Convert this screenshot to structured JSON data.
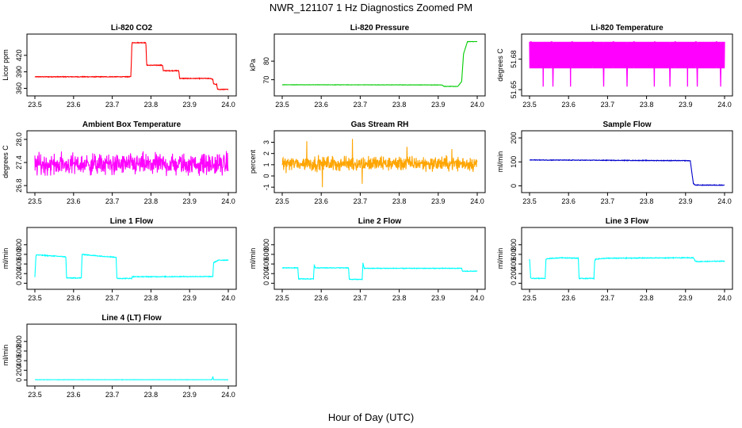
{
  "page": {
    "title": "NWR_121107  1 Hz Diagnostics Zoomed PM",
    "xlabel": "Hour of Day (UTC)"
  },
  "chart_data": [
    {
      "type": "line",
      "title": "Li-820 CO2",
      "ylabel": "Licor ppm",
      "xlim": [
        23.5,
        24.0
      ],
      "ylim": [
        352,
        450
      ],
      "xticks": [
        "23.5",
        "23.6",
        "23.7",
        "23.8",
        "23.9",
        "24.0"
      ],
      "yticks": [
        360,
        390,
        420
      ],
      "color": "#ff0000",
      "noise": 0.6,
      "series": [
        {
          "x": [
            23.5,
            23.748,
            23.751,
            23.787,
            23.789,
            23.83,
            23.832,
            23.872,
            23.874,
            23.955,
            23.96,
            23.962,
            23.97,
            23.972,
            24.0
          ],
          "y": [
            381,
            381,
            443,
            443,
            402,
            402,
            392,
            392,
            378,
            378,
            376,
            368,
            367,
            358,
            358
          ]
        }
      ]
    },
    {
      "type": "line",
      "title": "Li-820 Pressure",
      "ylabel": "kPa",
      "xlim": [
        23.5,
        24.0
      ],
      "ylim": [
        63,
        92
      ],
      "xticks": [
        "23.5",
        "23.6",
        "23.7",
        "23.8",
        "23.9",
        "24.0"
      ],
      "yticks": [
        70,
        80
      ],
      "color": "#00cc00",
      "noise": 0.08,
      "series": [
        {
          "x": [
            23.5,
            23.91,
            23.915,
            23.95,
            23.96,
            23.965,
            23.975,
            24.0
          ],
          "y": [
            67.3,
            67.2,
            66.4,
            66.4,
            69,
            84,
            90.5,
            90.5
          ]
        }
      ]
    },
    {
      "type": "line",
      "title": "Li-820 Temperature",
      "ylabel": "degrees C",
      "xlim": [
        23.5,
        24.0
      ],
      "ylim": [
        51.647,
        51.7
      ],
      "xticks": [
        "23.5",
        "23.6",
        "23.7",
        "23.8",
        "23.9",
        "24.0"
      ],
      "yticks": [
        51.65,
        51.68
      ],
      "color": "#ff00ff",
      "levels": [
        51.671,
        51.697
      ],
      "dips": [
        23.535,
        23.56,
        23.605,
        23.69,
        23.75,
        23.82,
        23.86,
        23.905,
        23.93,
        23.99
      ],
      "dip_value": 51.653
    },
    {
      "type": "line",
      "title": "Ambient Box Temperature",
      "ylabel": "degrees C",
      "xlim": [
        23.5,
        24.0
      ],
      "ylim": [
        26.7,
        28.1
      ],
      "xticks": [
        "23.5",
        "23.6",
        "23.7",
        "23.8",
        "23.9",
        "24.0"
      ],
      "yticks": [
        "26.8",
        "27.4",
        "28.0"
      ],
      "color": "#ff00ff",
      "noise_band": [
        26.95,
        27.75
      ],
      "mean": 27.35
    },
    {
      "type": "line",
      "title": "Gas Stream RH",
      "ylabel": "percent",
      "xlim": [
        23.5,
        24.0
      ],
      "ylim": [
        -1.2,
        3.6
      ],
      "xticks": [
        "23.5",
        "23.6",
        "23.7",
        "23.8",
        "23.9",
        "24.0"
      ],
      "yticks": [
        -1,
        0,
        1,
        2,
        3
      ],
      "color": "#ffa500",
      "mean": 1.1,
      "noise_band": [
        0.2,
        2.1
      ],
      "spikes": [
        [
          23.563,
          3.1
        ],
        [
          23.603,
          -1.0
        ],
        [
          23.68,
          3.3
        ],
        [
          23.705,
          -0.7
        ],
        [
          23.82,
          2.6
        ],
        [
          23.935,
          2.4
        ]
      ]
    },
    {
      "type": "line",
      "title": "Sample Flow",
      "ylabel": "ml/min",
      "xlim": [
        23.5,
        24.0
      ],
      "ylim": [
        -15,
        210
      ],
      "xticks": [
        "23.5",
        "23.6",
        "23.7",
        "23.8",
        "23.9",
        "24.0"
      ],
      "yticks": [
        0,
        100,
        200
      ],
      "color": "#0000cc",
      "noise": 1.2,
      "series": [
        {
          "x": [
            23.5,
            23.912,
            23.915,
            23.92,
            23.925,
            24.0
          ],
          "y": [
            108,
            105,
            70,
            10,
            3,
            3
          ]
        }
      ]
    },
    {
      "type": "line",
      "title": "Line 1 Flow",
      "ylabel": "ml/min",
      "xlim": [
        23.5,
        24.0
      ],
      "ylim": [
        -60,
        1060
      ],
      "xticks": [
        "23.5",
        "23.6",
        "23.7",
        "23.8",
        "23.9",
        "24.0"
      ],
      "yticks": [
        0,
        200,
        400,
        600,
        800
      ],
      "color": "#00ffff",
      "noise": 7,
      "series": [
        {
          "x": [
            23.5,
            23.503,
            23.54,
            23.58,
            23.582,
            23.62,
            23.622,
            23.66,
            23.71,
            23.712,
            23.75,
            23.752,
            23.96,
            23.962,
            23.975,
            24.0
          ],
          "y": [
            120,
            590,
            570,
            550,
            110,
            110,
            600,
            570,
            540,
            100,
            100,
            135,
            140,
            430,
            480,
            480
          ]
        }
      ]
    },
    {
      "type": "line",
      "title": "Line 2 Flow",
      "ylabel": "ml/min",
      "xlim": [
        23.5,
        24.0
      ],
      "ylim": [
        -60,
        1060
      ],
      "xticks": [
        "23.5",
        "23.6",
        "23.7",
        "23.8",
        "23.9",
        "24.0"
      ],
      "yticks": [
        0,
        200,
        400,
        600,
        800
      ],
      "color": "#00ffff",
      "noise": 6,
      "series": [
        {
          "x": [
            23.5,
            23.54,
            23.542,
            23.58,
            23.582,
            23.585,
            23.67,
            23.672,
            23.705,
            23.707,
            23.71,
            23.96,
            23.962,
            24.0
          ],
          "y": [
            320,
            320,
            90,
            90,
            380,
            320,
            320,
            80,
            80,
            430,
            310,
            310,
            250,
            250
          ]
        }
      ]
    },
    {
      "type": "line",
      "title": "Line 3 Flow",
      "ylabel": "ml/min",
      "xlim": [
        23.5,
        24.0
      ],
      "ylim": [
        -60,
        1060
      ],
      "xticks": [
        "23.5",
        "23.6",
        "23.7",
        "23.8",
        "23.9",
        "24.0"
      ],
      "yticks": [
        0,
        200,
        400,
        600,
        800
      ],
      "color": "#00ffff",
      "noise": 7,
      "series": [
        {
          "x": [
            23.5,
            23.503,
            23.54,
            23.542,
            23.545,
            23.58,
            23.625,
            23.627,
            23.665,
            23.667,
            23.67,
            23.68,
            23.7,
            23.92,
            23.925,
            23.93,
            24.0
          ],
          "y": [
            500,
            100,
            100,
            490,
            510,
            530,
            520,
            100,
            100,
            470,
            500,
            510,
            520,
            530,
            460,
            450,
            460
          ]
        }
      ]
    },
    {
      "type": "line",
      "title": "Line 4 (LT) Flow",
      "ylabel": "ml/min",
      "xlim": [
        23.5,
        24.0
      ],
      "ylim": [
        -60,
        1060
      ],
      "xticks": [
        "23.5",
        "23.6",
        "23.7",
        "23.8",
        "23.9",
        "24.0"
      ],
      "yticks": [
        0,
        200,
        400,
        600,
        800
      ],
      "color": "#00ffff",
      "noise": 2,
      "series": [
        {
          "x": [
            23.5,
            23.958,
            23.96,
            23.962,
            24.0
          ],
          "y": [
            5,
            5,
            70,
            5,
            5
          ]
        }
      ]
    }
  ]
}
